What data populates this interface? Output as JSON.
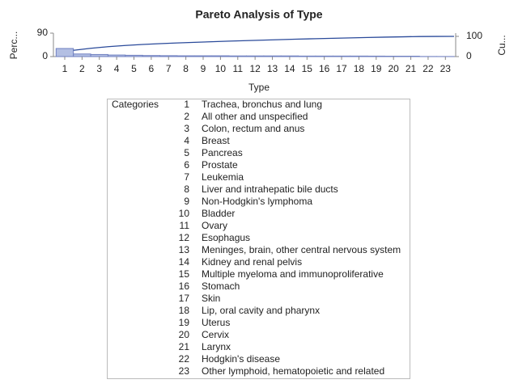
{
  "chart_data": {
    "type": "pareto",
    "title": "Pareto Analysis of Type",
    "x_label": "Type",
    "y_label": "Perc...",
    "y2_label": "Cu...",
    "categories": [
      "1",
      "2",
      "3",
      "4",
      "5",
      "6",
      "7",
      "8",
      "9",
      "10",
      "11",
      "12",
      "13",
      "14",
      "15",
      "16",
      "17",
      "18",
      "19",
      "20",
      "21",
      "22",
      "23"
    ],
    "values": [
      31,
      10,
      8,
      6,
      5,
      4,
      3.5,
      3,
      3,
      3,
      2.5,
      2.5,
      2.5,
      2.5,
      2,
      2,
      2,
      2,
      1.8,
      1.5,
      1.5,
      0.4,
      0.3
    ],
    "color": "#b3bfe3",
    "edge_color": "#7080c0",
    "line_color": "#2a4a9a",
    "ylim": [
      0,
      90
    ],
    "yticks": [
      0,
      90
    ],
    "y2lim": [
      0,
      116
    ],
    "y2ticks": [
      0,
      100
    ],
    "table_header": "Categories",
    "category_names": [
      "Trachea, bronchus and lung",
      "All other and unspecified",
      "Colon, rectum and anus",
      "Breast",
      "Pancreas",
      "Prostate",
      "Leukemia",
      "Liver and intrahepatic bile ducts",
      "Non-Hodgkin's lymphoma",
      "Bladder",
      "Ovary",
      "Esophagus",
      "Meninges, brain, other central nervous system",
      "Kidney and renal pelvis",
      "Multiple myeloma and immunoproliferative",
      "Stomach",
      "Skin",
      "Lip, oral cavity and pharynx",
      "Uterus",
      "Cervix",
      "Larynx",
      "Hodgkin's disease",
      "Other lymphoid, hematopoietic and related"
    ]
  }
}
